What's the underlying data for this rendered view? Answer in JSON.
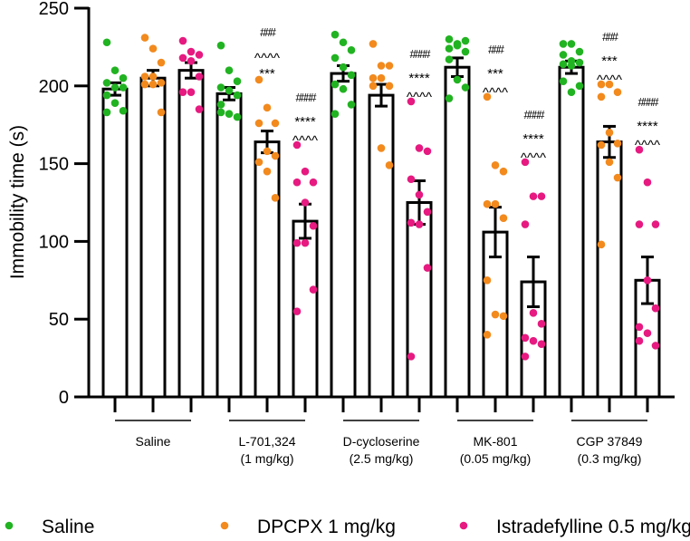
{
  "chart_data": {
    "type": "bar",
    "title": "",
    "xlabel": "",
    "ylabel": "Immobility time (s)",
    "ylim": [
      0,
      250
    ],
    "yticks": [
      0,
      50,
      100,
      150,
      200,
      250
    ],
    "grid": false,
    "legend_placement": "bottom",
    "colors": {
      "Saline": "#21b321",
      "DPCPX 1 mg/kg": "#f28a1e",
      "Istradefylline 0.5 mg/kg": "#e61a80"
    },
    "series_names": [
      "Saline",
      "DPCPX 1 mg/kg",
      "Istradefylline 0.5 mg/kg"
    ],
    "groups": [
      {
        "label": [
          "Saline"
        ],
        "bars": [
          {
            "series": 0,
            "mean": 198,
            "sem": 4,
            "points": [
              228,
              210,
              205,
              202,
              199,
              199,
              194,
              189,
              184,
              183
            ],
            "annotation": []
          },
          {
            "series": 1,
            "mean": 205,
            "sem": 5,
            "points": [
              231,
              224,
              215,
              206,
              206,
              202,
              201,
              201,
              183
            ],
            "annotation": []
          },
          {
            "series": 2,
            "mean": 210,
            "sem": 5,
            "points": [
              229,
              222,
              220,
              218,
              216,
              206,
              196,
              196,
              185
            ],
            "annotation": []
          }
        ]
      },
      {
        "label": [
          "L-701,324",
          "(1 mg/kg)"
        ],
        "bars": [
          {
            "series": 0,
            "mean": 195,
            "sem": 4,
            "points": [
              226,
              210,
              203,
              199,
              197,
              194,
              188,
              182,
              180,
              183
            ],
            "annotation": []
          },
          {
            "series": 1,
            "mean": 164,
            "sem": 7,
            "points": [
              204,
              186,
              176,
              176,
              158,
              155,
              151,
              145,
              128
            ],
            "annotation": [
              "###",
              "^^^^",
              "***"
            ]
          },
          {
            "series": 2,
            "mean": 113,
            "sem": 11,
            "points": [
              162,
              145,
              138,
              138,
              125,
              110,
              99,
              99,
              69,
              55
            ],
            "annotation": [
              "####",
              "****",
              "^^^^"
            ]
          }
        ]
      },
      {
        "label": [
          "D-cycloserine",
          "(2.5 mg/kg)"
        ],
        "bars": [
          {
            "series": 0,
            "mean": 208,
            "sem": 5,
            "points": [
              233,
              228,
              223,
              218,
              212,
              207,
              201,
              198,
              188,
              182
            ],
            "annotation": []
          },
          {
            "series": 1,
            "mean": 194,
            "sem": 7,
            "points": [
              227,
              213,
              213,
              205,
              205,
              200,
              200,
              160,
              149
            ],
            "annotation": []
          },
          {
            "series": 2,
            "mean": 125,
            "sem": 14,
            "points": [
              190,
              160,
              158,
              140,
              130,
              119,
              112,
              111,
              83,
              26
            ],
            "annotation": [
              "####",
              "****",
              "^^^^"
            ]
          }
        ]
      },
      {
        "label": [
          "MK-801",
          "(0.05 mg/kg)"
        ],
        "bars": [
          {
            "series": 0,
            "mean": 212,
            "sem": 6,
            "points": [
              230,
              227,
              229,
              224,
              226,
              222,
              217,
              204,
              199,
              192
            ],
            "annotation": []
          },
          {
            "series": 1,
            "mean": 106,
            "sem": 16,
            "points": [
              193,
              149,
              145,
              124,
              124,
              115,
              75,
              53,
              52,
              40
            ],
            "annotation": [
              "###",
              "***",
              "^^^^"
            ]
          },
          {
            "series": 2,
            "mean": 74,
            "sem": 16,
            "points": [
              151,
              129,
              129,
              111,
              54,
              47,
              38,
              36,
              34,
              26
            ],
            "annotation": [
              "####",
              "****",
              "^^^^"
            ]
          }
        ]
      },
      {
        "label": [
          "CGP 37849",
          "(0.3 mg/kg)"
        ],
        "bars": [
          {
            "series": 0,
            "mean": 212,
            "sem": 4,
            "points": [
              227,
              227,
              222,
              220,
              216,
              215,
              214,
              213,
              200,
              203,
              196
            ],
            "annotation": []
          },
          {
            "series": 1,
            "mean": 164,
            "sem": 10,
            "points": [
              201,
              201,
              196,
              193,
              170,
              163,
              162,
              151,
              141,
              98
            ],
            "annotation": [
              "###",
              "***",
              "^^^^"
            ]
          },
          {
            "series": 2,
            "mean": 75,
            "sem": 15,
            "points": [
              159,
              138,
              111,
              111,
              75,
              57,
              45,
              41,
              33,
              36
            ],
            "annotation": [
              "####",
              "****",
              "^^^^"
            ]
          }
        ]
      }
    ]
  }
}
